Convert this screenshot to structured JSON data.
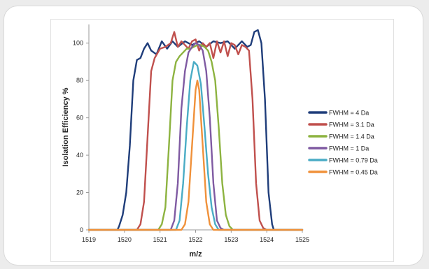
{
  "chart_data": {
    "type": "line",
    "title": "",
    "xlabel": "m/z",
    "ylabel": "Isolation Efficiency %",
    "xlim": [
      1519,
      1525
    ],
    "ylim": [
      0,
      110
    ],
    "xticks": [
      "1519",
      "1520",
      "1521",
      "1522",
      "1523",
      "1524",
      "1525"
    ],
    "yticks": [
      "0",
      "20",
      "40",
      "60",
      "80",
      "100"
    ],
    "grid": false,
    "legend": "right",
    "series": [
      {
        "name": "FWHM = 4 Da",
        "color": "#1f3d7a",
        "x": [
          1519.0,
          1519.8,
          1519.85,
          1519.95,
          1520.05,
          1520.15,
          1520.25,
          1520.35,
          1520.45,
          1520.55,
          1520.65,
          1520.75,
          1520.9,
          1521.05,
          1521.2,
          1521.35,
          1521.5,
          1521.7,
          1521.9,
          1522.1,
          1522.3,
          1522.5,
          1522.7,
          1522.9,
          1523.1,
          1523.3,
          1523.45,
          1523.55,
          1523.65,
          1523.75,
          1523.85,
          1523.95,
          1524.05,
          1524.15,
          1524.2,
          1525.0
        ],
        "y": [
          0,
          0,
          2,
          8,
          20,
          45,
          80,
          91,
          92,
          97,
          100,
          96,
          94,
          101,
          97,
          101,
          98,
          101,
          99,
          101,
          98,
          101,
          100,
          101,
          97,
          101,
          98,
          99,
          106,
          107,
          100,
          70,
          20,
          3,
          0,
          0
        ]
      },
      {
        "name": "FWHM = 3.1 Da",
        "color": "#c0504d",
        "x": [
          1519.0,
          1520.35,
          1520.45,
          1520.55,
          1520.65,
          1520.75,
          1520.85,
          1521.0,
          1521.15,
          1521.3,
          1521.4,
          1521.5,
          1521.6,
          1521.7,
          1521.8,
          1521.9,
          1522.0,
          1522.1,
          1522.2,
          1522.3,
          1522.4,
          1522.5,
          1522.6,
          1522.7,
          1522.8,
          1522.9,
          1523.0,
          1523.1,
          1523.2,
          1523.3,
          1523.4,
          1523.5,
          1523.6,
          1523.7,
          1523.8,
          1523.9,
          1524.0,
          1525.0
        ],
        "y": [
          0,
          0,
          3,
          15,
          50,
          85,
          92,
          97,
          98,
          100,
          106,
          98,
          101,
          99,
          97,
          101,
          102,
          96,
          100,
          98,
          100,
          92,
          101,
          95,
          101,
          93,
          100,
          99,
          94,
          99,
          98,
          96,
          70,
          25,
          5,
          1,
          0,
          0
        ]
      },
      {
        "name": "FWHM = 1.4 Da",
        "color": "#8db340",
        "x": [
          1519.0,
          1520.95,
          1521.05,
          1521.15,
          1521.25,
          1521.35,
          1521.45,
          1521.55,
          1521.65,
          1521.75,
          1521.85,
          1521.95,
          1522.05,
          1522.15,
          1522.25,
          1522.35,
          1522.45,
          1522.55,
          1522.65,
          1522.75,
          1522.85,
          1522.95,
          1523.05,
          1525.0
        ],
        "y": [
          0,
          0,
          3,
          12,
          45,
          80,
          90,
          93,
          95,
          97,
          97,
          98,
          99,
          99,
          98,
          96,
          90,
          80,
          55,
          25,
          8,
          2,
          0,
          0
        ]
      },
      {
        "name": "FWHM = 1 Da",
        "color": "#7f5aa2",
        "x": [
          1519.0,
          1521.3,
          1521.4,
          1521.5,
          1521.6,
          1521.7,
          1521.8,
          1521.9,
          1522.0,
          1522.1,
          1522.2,
          1522.3,
          1522.4,
          1522.5,
          1522.6,
          1522.7,
          1522.8,
          1525.0
        ],
        "y": [
          0,
          0,
          5,
          25,
          65,
          85,
          95,
          98,
          100,
          99,
          96,
          85,
          60,
          25,
          5,
          1,
          0,
          0
        ]
      },
      {
        "name": "FWHM = 0.79 Da",
        "color": "#4aacc5",
        "x": [
          1519.0,
          1521.45,
          1521.55,
          1521.65,
          1521.75,
          1521.85,
          1521.95,
          1522.05,
          1522.15,
          1522.25,
          1522.35,
          1522.45,
          1522.55,
          1522.65,
          1525.0
        ],
        "y": [
          0,
          0,
          5,
          25,
          55,
          80,
          90,
          88,
          78,
          55,
          30,
          12,
          3,
          0,
          0
        ]
      },
      {
        "name": "FWHM = 0.45 Da",
        "color": "#f0913a",
        "x": [
          1519.0,
          1521.6,
          1521.7,
          1521.8,
          1521.9,
          1522.0,
          1522.05,
          1522.1,
          1522.2,
          1522.3,
          1522.4,
          1522.5,
          1525.0
        ],
        "y": [
          0,
          0,
          3,
          15,
          45,
          75,
          80,
          75,
          45,
          15,
          3,
          0,
          0
        ]
      }
    ]
  }
}
